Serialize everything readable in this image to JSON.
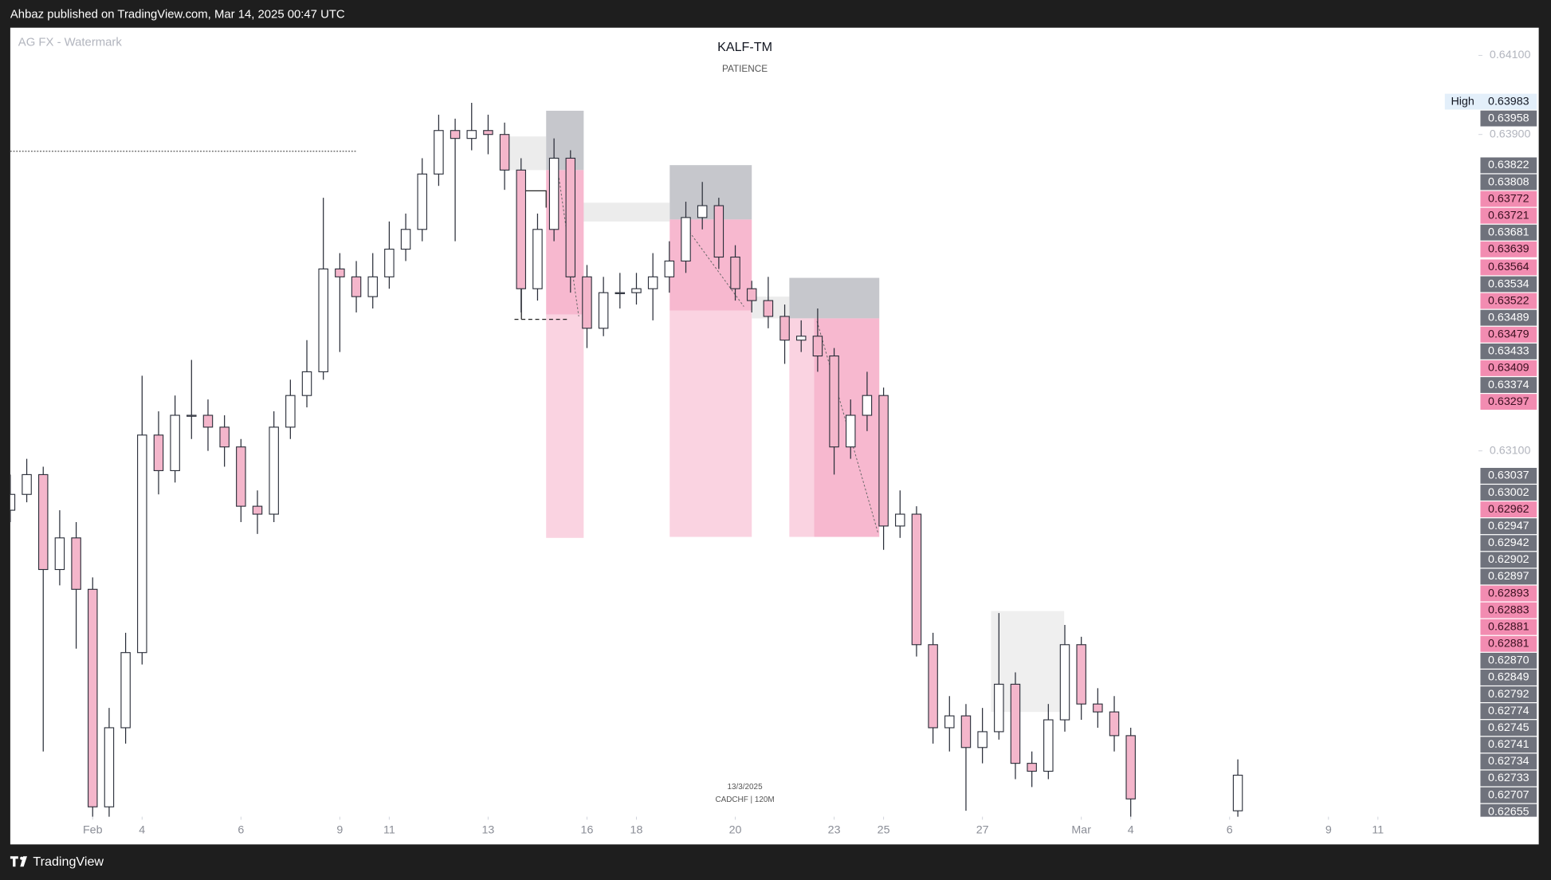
{
  "header": {
    "text": "Ahbaz published on TradingView.com, Mar 14, 2025 00:47 UTC"
  },
  "watermark": "AG FX - Watermark",
  "footer": {
    "brand": "TradingView"
  },
  "chart_data": {
    "type": "candlestick",
    "title": "KALF-TM",
    "subtitle": "PATIENCE",
    "annotations": [
      "13/3/2025",
      "CADCHF | 120M"
    ],
    "x": [
      0,
      2,
      4,
      6,
      8,
      10,
      12,
      14,
      16,
      18,
      20,
      22,
      24,
      26,
      28,
      30,
      32,
      34,
      36,
      38,
      40,
      42,
      44,
      46,
      48,
      50,
      52,
      54,
      56,
      58,
      60,
      62,
      64,
      66,
      68,
      70,
      72,
      74,
      76,
      78,
      80,
      82,
      84,
      86,
      88,
      90,
      92,
      94,
      96,
      98,
      100,
      102,
      104,
      106,
      108,
      110,
      112,
      114,
      116,
      118,
      120,
      122,
      124,
      126,
      128,
      130,
      132,
      134,
      136,
      149
    ],
    "open": [
      0.6295,
      0.6299,
      0.6304,
      0.628,
      0.6288,
      0.6275,
      0.622,
      0.624,
      0.6259,
      0.6314,
      0.6305,
      0.6319,
      0.6319,
      0.6316,
      0.6311,
      0.6296,
      0.6294,
      0.6316,
      0.6324,
      0.633,
      0.6356,
      0.6354,
      0.6349,
      0.6354,
      0.6361,
      0.6366,
      0.638,
      0.6391,
      0.6389,
      0.6391,
      0.639,
      0.6381,
      0.6351,
      0.6366,
      0.6384,
      0.6354,
      0.6341,
      0.635,
      0.635,
      0.6351,
      0.6354,
      0.6358,
      0.6369,
      0.6372,
      0.6359,
      0.6351,
      0.6348,
      0.6344,
      0.6338,
      0.6339,
      0.6334,
      0.6311,
      0.6319,
      0.6324,
      0.6291,
      0.6294,
      0.6261,
      0.624,
      0.6243,
      0.6235,
      0.6239,
      0.6251,
      0.6231,
      0.6229,
      0.6242,
      0.6261,
      0.6246,
      0.6244,
      0.6238,
      0.6219
    ],
    "high": [
      0.6304,
      0.6308,
      0.6306,
      0.6295,
      0.6292,
      0.6278,
      0.6245,
      0.6264,
      0.6329,
      0.632,
      0.6324,
      0.6333,
      0.6323,
      0.6319,
      0.6313,
      0.63,
      0.632,
      0.6328,
      0.6338,
      0.6374,
      0.636,
      0.6358,
      0.636,
      0.6368,
      0.637,
      0.6384,
      0.6395,
      0.6394,
      0.6398,
      0.6395,
      0.6393,
      0.6384,
      0.637,
      0.6389,
      0.6386,
      0.6357,
      0.6354,
      0.6355,
      0.6355,
      0.636,
      0.6363,
      0.6373,
      0.6378,
      0.6374,
      0.6362,
      0.6353,
      0.6354,
      0.6347,
      0.6343,
      0.6346,
      0.6336,
      0.6323,
      0.633,
      0.6326,
      0.63,
      0.6296,
      0.6264,
      0.6248,
      0.6246,
      0.6245,
      0.6269,
      0.6254,
      0.6234,
      0.6246,
      0.6266,
      0.6263,
      0.625,
      0.6248,
      0.624,
      0.6232
    ],
    "low": [
      0.6292,
      0.6297,
      0.6234,
      0.6276,
      0.626,
      0.6217,
      0.6217,
      0.6236,
      0.6256,
      0.6299,
      0.6302,
      0.6313,
      0.631,
      0.6306,
      0.6292,
      0.6289,
      0.6292,
      0.6313,
      0.6321,
      0.6328,
      0.6335,
      0.6345,
      0.6346,
      0.6351,
      0.6358,
      0.6363,
      0.6377,
      0.6363,
      0.6386,
      0.6385,
      0.6376,
      0.6345,
      0.6348,
      0.6363,
      0.635,
      0.6336,
      0.6339,
      0.6346,
      0.6347,
      0.6343,
      0.635,
      0.6355,
      0.6366,
      0.6356,
      0.6348,
      0.6345,
      0.6341,
      0.6332,
      0.6335,
      0.633,
      0.6304,
      0.6308,
      0.6315,
      0.6285,
      0.6288,
      0.6258,
      0.6236,
      0.6234,
      0.6219,
      0.6231,
      0.6237,
      0.6227,
      0.6225,
      0.6227,
      0.6239,
      0.6242,
      0.624,
      0.6234,
      0.6217,
      0.6217
    ],
    "close": [
      0.6299,
      0.6304,
      0.628,
      0.6288,
      0.6275,
      0.622,
      0.624,
      0.6259,
      0.6314,
      0.6305,
      0.6319,
      0.6319,
      0.6316,
      0.6311,
      0.6296,
      0.6294,
      0.6316,
      0.6324,
      0.633,
      0.6356,
      0.6354,
      0.6349,
      0.6354,
      0.6361,
      0.6366,
      0.638,
      0.6391,
      0.6389,
      0.6391,
      0.639,
      0.6381,
      0.6351,
      0.6366,
      0.6384,
      0.6354,
      0.6341,
      0.635,
      0.635,
      0.6351,
      0.6354,
      0.6358,
      0.6369,
      0.6372,
      0.6359,
      0.6351,
      0.6348,
      0.6344,
      0.6338,
      0.6339,
      0.6334,
      0.6311,
      0.6319,
      0.6324,
      0.6291,
      0.6294,
      0.6261,
      0.624,
      0.6243,
      0.6235,
      0.6239,
      0.6251,
      0.6231,
      0.6229,
      0.6242,
      0.6261,
      0.6246,
      0.6244,
      0.6238,
      0.6222,
      0.6228
    ],
    "up_color": "#ffffff",
    "down_color": "#f4b6cb",
    "outline_color": "#2a2e39",
    "xlim": [
      0,
      178
    ],
    "xticks": [
      {
        "value": 10,
        "label": "Feb"
      },
      {
        "value": 16,
        "label": "4"
      },
      {
        "value": 28,
        "label": "6"
      },
      {
        "value": 40,
        "label": "9"
      },
      {
        "value": 46,
        "label": "11"
      },
      {
        "value": 58,
        "label": "13"
      },
      {
        "value": 70,
        "label": "16"
      },
      {
        "value": 76,
        "label": "18"
      },
      {
        "value": 88,
        "label": "20"
      },
      {
        "value": 100,
        "label": "23"
      },
      {
        "value": 106,
        "label": "25"
      },
      {
        "value": 118,
        "label": "27"
      },
      {
        "value": 130,
        "label": "Mar"
      },
      {
        "value": 136,
        "label": "4"
      },
      {
        "value": 148,
        "label": "6"
      },
      {
        "value": 160,
        "label": "9"
      },
      {
        "value": 166,
        "label": "11"
      }
    ],
    "ylim": [
      0.6218,
      0.6417
    ],
    "yticks": [
      {
        "value": 0.641,
        "label": "0.64100"
      },
      {
        "value": 0.639,
        "label": "0.63900"
      },
      {
        "value": 0.631,
        "label": "0.63100"
      }
    ],
    "high_marker": {
      "text": "High",
      "value": 0.63983,
      "label": "0.63983",
      "color": "#e3effa",
      "text_color": "#131722"
    },
    "price_tags": [
      {
        "value": 0.63958,
        "label": "0.63958",
        "color": "#6f727c",
        "text_color": "#ffffff"
      },
      {
        "value": 0.63822,
        "label": "0.63822",
        "color": "#6f727c",
        "text_color": "#ffffff"
      },
      {
        "value": 0.63808,
        "label": "0.63808",
        "color": "#6f727c",
        "text_color": "#ffffff"
      },
      {
        "value": 0.63772,
        "label": "0.63772",
        "color": "#f28cb1",
        "text_color": "#3a0f1f"
      },
      {
        "value": 0.63721,
        "label": "0.63721",
        "color": "#f28cb1",
        "text_color": "#3a0f1f"
      },
      {
        "value": 0.63681,
        "label": "0.63681",
        "color": "#6f727c",
        "text_color": "#ffffff"
      },
      {
        "value": 0.63639,
        "label": "0.63639",
        "color": "#f28cb1",
        "text_color": "#3a0f1f"
      },
      {
        "value": 0.63564,
        "label": "0.63564",
        "color": "#f28cb1",
        "text_color": "#3a0f1f"
      },
      {
        "value": 0.63534,
        "label": "0.63534",
        "color": "#6f727c",
        "text_color": "#ffffff"
      },
      {
        "value": 0.63522,
        "label": "0.63522",
        "color": "#f28cb1",
        "text_color": "#3a0f1f"
      },
      {
        "value": 0.63489,
        "label": "0.63489",
        "color": "#6f727c",
        "text_color": "#ffffff"
      },
      {
        "value": 0.63479,
        "label": "0.63479",
        "color": "#f28cb1",
        "text_color": "#3a0f1f"
      },
      {
        "value": 0.63433,
        "label": "0.63433",
        "color": "#6f727c",
        "text_color": "#ffffff"
      },
      {
        "value": 0.63409,
        "label": "0.63409",
        "color": "#f28cb1",
        "text_color": "#3a0f1f"
      },
      {
        "value": 0.63374,
        "label": "0.63374",
        "color": "#6f727c",
        "text_color": "#ffffff"
      },
      {
        "value": 0.63297,
        "label": "0.63297",
        "color": "#f28cb1",
        "text_color": "#3a0f1f"
      },
      {
        "value": 0.63037,
        "label": "0.63037",
        "color": "#6f727c",
        "text_color": "#ffffff"
      },
      {
        "value": 0.63002,
        "label": "0.63002",
        "color": "#6f727c",
        "text_color": "#ffffff"
      },
      {
        "value": 0.62962,
        "label": "0.62962",
        "color": "#f28cb1",
        "text_color": "#3a0f1f"
      },
      {
        "value": 0.62947,
        "label": "0.62947",
        "color": "#6f727c",
        "text_color": "#ffffff"
      },
      {
        "value": 0.62942,
        "label": "0.62942",
        "color": "#6f727c",
        "text_color": "#ffffff"
      },
      {
        "value": 0.62902,
        "label": "0.62902",
        "color": "#6f727c",
        "text_color": "#ffffff"
      },
      {
        "value": 0.62897,
        "label": "0.62897",
        "color": "#6f727c",
        "text_color": "#ffffff"
      },
      {
        "value": 0.62893,
        "label": "0.62893",
        "color": "#f28cb1",
        "text_color": "#3a0f1f"
      },
      {
        "value": 0.62883,
        "label": "0.62883",
        "color": "#f28cb1",
        "text_color": "#3a0f1f"
      },
      {
        "value": 0.62881,
        "label": "0.62881",
        "color": "#f28cb1",
        "text_color": "#3a0f1f"
      },
      {
        "value": 0.62881,
        "label": "0.62881",
        "color": "#f28cb1",
        "text_color": "#3a0f1f"
      },
      {
        "value": 0.6287,
        "label": "0.62870",
        "color": "#6f727c",
        "text_color": "#ffffff"
      },
      {
        "value": 0.62849,
        "label": "0.62849",
        "color": "#6f727c",
        "text_color": "#ffffff"
      },
      {
        "value": 0.62792,
        "label": "0.62792",
        "color": "#6f727c",
        "text_color": "#ffffff"
      },
      {
        "value": 0.62774,
        "label": "0.62774",
        "color": "#6f727c",
        "text_color": "#ffffff"
      },
      {
        "value": 0.62745,
        "label": "0.62745",
        "color": "#6f727c",
        "text_color": "#ffffff"
      },
      {
        "value": 0.62741,
        "label": "0.62741",
        "color": "#6f727c",
        "text_color": "#ffffff"
      },
      {
        "value": 0.62734,
        "label": "0.62734",
        "color": "#6f727c",
        "text_color": "#ffffff"
      },
      {
        "value": 0.62733,
        "label": "0.62733",
        "color": "#6f727c",
        "text_color": "#ffffff"
      },
      {
        "value": 0.62707,
        "label": "0.62707",
        "color": "#6f727c",
        "text_color": "#ffffff"
      },
      {
        "value": 0.62655,
        "label": "0.62655",
        "color": "#6f727c",
        "text_color": "#ffffff"
      }
    ]
  }
}
